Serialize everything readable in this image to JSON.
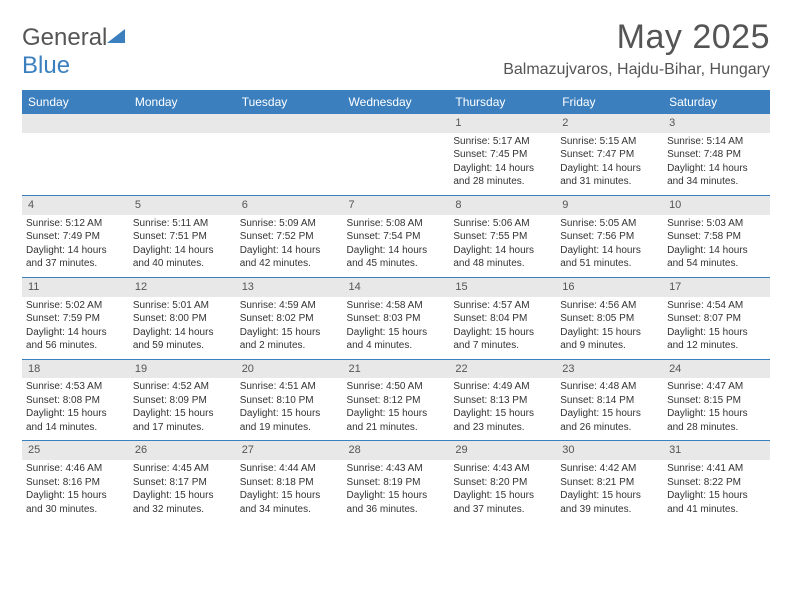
{
  "brand": {
    "part1": "General",
    "part2": "Blue"
  },
  "title": "May 2025",
  "location": "Balmazujvaros, Hajdu-Bihar, Hungary",
  "colors": {
    "header_bg": "#3b7fbf",
    "header_text": "#ffffff",
    "daynum_bg": "#e8e8e8",
    "border": "#3b7fbf",
    "logo_accent": "#3b7fbf",
    "body_text": "#333333",
    "title_text": "#555555",
    "page_bg": "#ffffff"
  },
  "day_headers": [
    "Sunday",
    "Monday",
    "Tuesday",
    "Wednesday",
    "Thursday",
    "Friday",
    "Saturday"
  ],
  "weeks": [
    [
      null,
      null,
      null,
      null,
      {
        "n": "1",
        "sunrise": "5:17 AM",
        "sunset": "7:45 PM",
        "daylight": "14 hours and 28 minutes."
      },
      {
        "n": "2",
        "sunrise": "5:15 AM",
        "sunset": "7:47 PM",
        "daylight": "14 hours and 31 minutes."
      },
      {
        "n": "3",
        "sunrise": "5:14 AM",
        "sunset": "7:48 PM",
        "daylight": "14 hours and 34 minutes."
      }
    ],
    [
      {
        "n": "4",
        "sunrise": "5:12 AM",
        "sunset": "7:49 PM",
        "daylight": "14 hours and 37 minutes."
      },
      {
        "n": "5",
        "sunrise": "5:11 AM",
        "sunset": "7:51 PM",
        "daylight": "14 hours and 40 minutes."
      },
      {
        "n": "6",
        "sunrise": "5:09 AM",
        "sunset": "7:52 PM",
        "daylight": "14 hours and 42 minutes."
      },
      {
        "n": "7",
        "sunrise": "5:08 AM",
        "sunset": "7:54 PM",
        "daylight": "14 hours and 45 minutes."
      },
      {
        "n": "8",
        "sunrise": "5:06 AM",
        "sunset": "7:55 PM",
        "daylight": "14 hours and 48 minutes."
      },
      {
        "n": "9",
        "sunrise": "5:05 AM",
        "sunset": "7:56 PM",
        "daylight": "14 hours and 51 minutes."
      },
      {
        "n": "10",
        "sunrise": "5:03 AM",
        "sunset": "7:58 PM",
        "daylight": "14 hours and 54 minutes."
      }
    ],
    [
      {
        "n": "11",
        "sunrise": "5:02 AM",
        "sunset": "7:59 PM",
        "daylight": "14 hours and 56 minutes."
      },
      {
        "n": "12",
        "sunrise": "5:01 AM",
        "sunset": "8:00 PM",
        "daylight": "14 hours and 59 minutes."
      },
      {
        "n": "13",
        "sunrise": "4:59 AM",
        "sunset": "8:02 PM",
        "daylight": "15 hours and 2 minutes."
      },
      {
        "n": "14",
        "sunrise": "4:58 AM",
        "sunset": "8:03 PM",
        "daylight": "15 hours and 4 minutes."
      },
      {
        "n": "15",
        "sunrise": "4:57 AM",
        "sunset": "8:04 PM",
        "daylight": "15 hours and 7 minutes."
      },
      {
        "n": "16",
        "sunrise": "4:56 AM",
        "sunset": "8:05 PM",
        "daylight": "15 hours and 9 minutes."
      },
      {
        "n": "17",
        "sunrise": "4:54 AM",
        "sunset": "8:07 PM",
        "daylight": "15 hours and 12 minutes."
      }
    ],
    [
      {
        "n": "18",
        "sunrise": "4:53 AM",
        "sunset": "8:08 PM",
        "daylight": "15 hours and 14 minutes."
      },
      {
        "n": "19",
        "sunrise": "4:52 AM",
        "sunset": "8:09 PM",
        "daylight": "15 hours and 17 minutes."
      },
      {
        "n": "20",
        "sunrise": "4:51 AM",
        "sunset": "8:10 PM",
        "daylight": "15 hours and 19 minutes."
      },
      {
        "n": "21",
        "sunrise": "4:50 AM",
        "sunset": "8:12 PM",
        "daylight": "15 hours and 21 minutes."
      },
      {
        "n": "22",
        "sunrise": "4:49 AM",
        "sunset": "8:13 PM",
        "daylight": "15 hours and 23 minutes."
      },
      {
        "n": "23",
        "sunrise": "4:48 AM",
        "sunset": "8:14 PM",
        "daylight": "15 hours and 26 minutes."
      },
      {
        "n": "24",
        "sunrise": "4:47 AM",
        "sunset": "8:15 PM",
        "daylight": "15 hours and 28 minutes."
      }
    ],
    [
      {
        "n": "25",
        "sunrise": "4:46 AM",
        "sunset": "8:16 PM",
        "daylight": "15 hours and 30 minutes."
      },
      {
        "n": "26",
        "sunrise": "4:45 AM",
        "sunset": "8:17 PM",
        "daylight": "15 hours and 32 minutes."
      },
      {
        "n": "27",
        "sunrise": "4:44 AM",
        "sunset": "8:18 PM",
        "daylight": "15 hours and 34 minutes."
      },
      {
        "n": "28",
        "sunrise": "4:43 AM",
        "sunset": "8:19 PM",
        "daylight": "15 hours and 36 minutes."
      },
      {
        "n": "29",
        "sunrise": "4:43 AM",
        "sunset": "8:20 PM",
        "daylight": "15 hours and 37 minutes."
      },
      {
        "n": "30",
        "sunrise": "4:42 AM",
        "sunset": "8:21 PM",
        "daylight": "15 hours and 39 minutes."
      },
      {
        "n": "31",
        "sunrise": "4:41 AM",
        "sunset": "8:22 PM",
        "daylight": "15 hours and 41 minutes."
      }
    ]
  ],
  "labels": {
    "sunrise": "Sunrise:",
    "sunset": "Sunset:",
    "daylight": "Daylight:"
  }
}
